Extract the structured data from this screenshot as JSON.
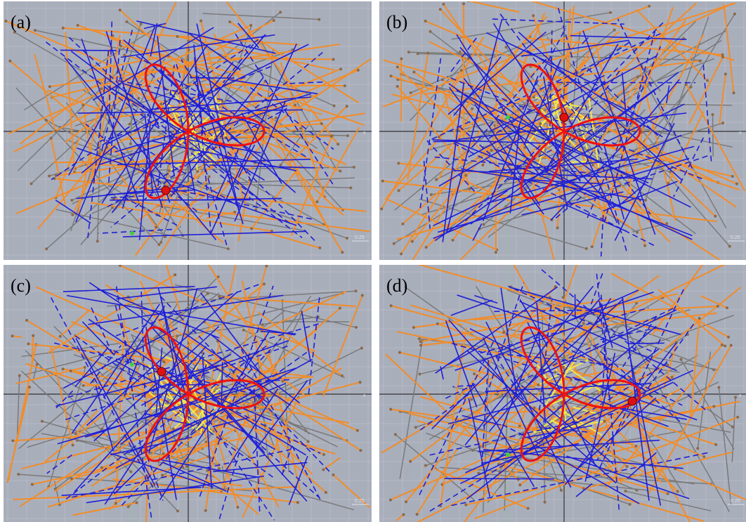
{
  "panels": [
    {
      "label": "(a)",
      "scale": "0.25",
      "axis": "x"
    },
    {
      "label": "(b)",
      "scale": "0.25",
      "axis": "x"
    },
    {
      "label": "(c)",
      "scale": "0.25",
      "axis": "x"
    },
    {
      "label": "(d)",
      "scale": "0.25",
      "axis": "x"
    }
  ]
}
